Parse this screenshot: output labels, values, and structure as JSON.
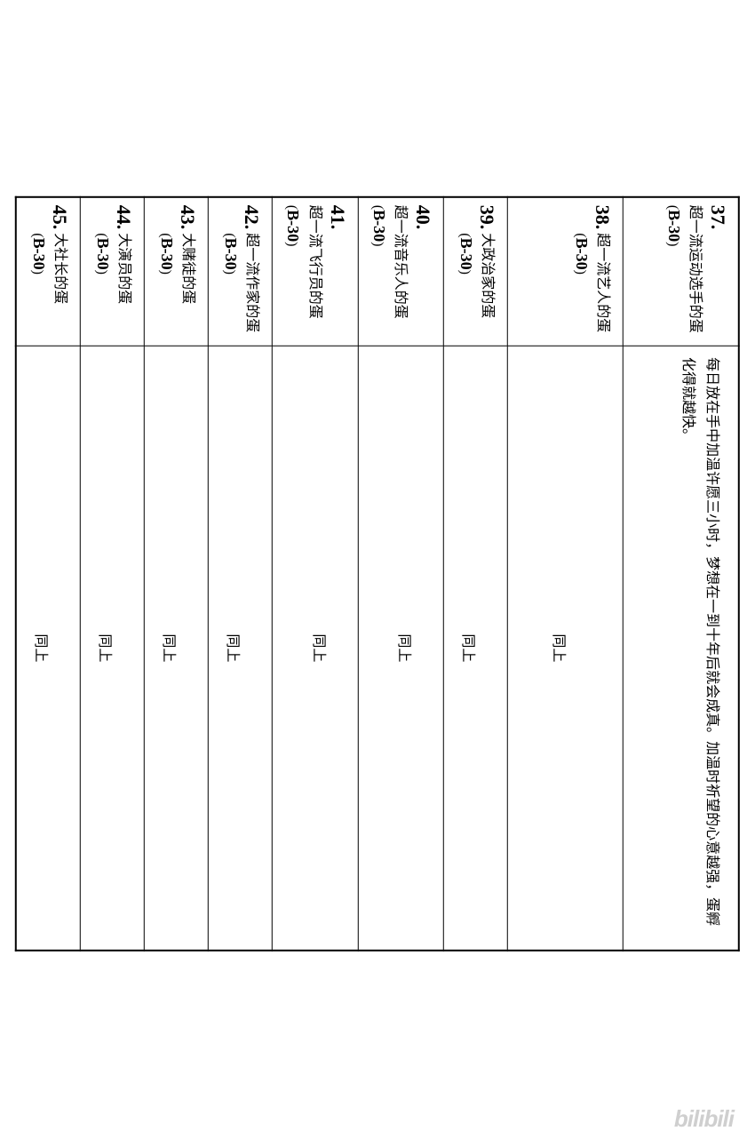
{
  "rows": [
    {
      "number": "37.",
      "title": "超一流运动选手的蛋",
      "code": "B-30",
      "desc_type": "full",
      "desc": "每日放在手中加温许愿三小时，梦想在一到十年后就会成真。加温时祈望的心意越强，蛋孵化得就越快。",
      "tall": true
    },
    {
      "number": "38.",
      "title": "超一流艺人的蛋",
      "code": "B-30",
      "desc_type": "same",
      "desc": "同上",
      "tall": true
    },
    {
      "number": "39.",
      "title": "大政治家的蛋",
      "code": "B-30",
      "desc_type": "same",
      "desc": "同上",
      "tall": false
    },
    {
      "number": "40.",
      "title": "超一流音乐人的蛋",
      "code": "B-30",
      "desc_type": "same",
      "desc": "同上",
      "tall": false
    },
    {
      "number": "41.",
      "title": "超一流飞行员的蛋",
      "code": "B-30",
      "desc_type": "same",
      "desc": "同上",
      "tall": false
    },
    {
      "number": "42.",
      "title": "超一流作家的蛋",
      "code": "B-30",
      "desc_type": "same",
      "desc": "同上",
      "tall": false
    },
    {
      "number": "43.",
      "title": "大赌徒的蛋",
      "code": "B-30",
      "desc_type": "same",
      "desc": "同上",
      "tall": false
    },
    {
      "number": "44.",
      "title": "大演员的蛋",
      "code": "B-30",
      "desc_type": "same",
      "desc": "同上",
      "tall": false
    },
    {
      "number": "45.",
      "title": "大社长的蛋",
      "code": "B-30",
      "desc_type": "same",
      "desc": "同上",
      "tall": false
    }
  ],
  "watermark": "bilibili"
}
